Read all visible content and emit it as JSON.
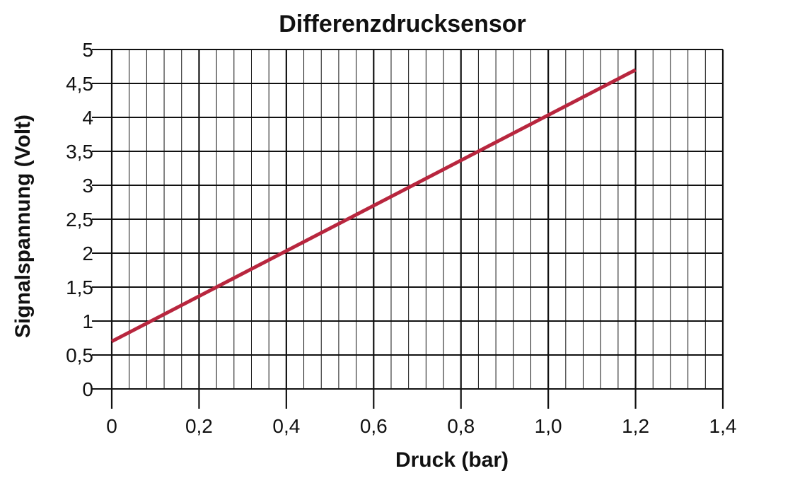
{
  "chart_data": {
    "type": "line",
    "title": "Differenzdrucksensor",
    "xlabel": "Druck (bar)",
    "ylabel": "Signalspannung (Volt)",
    "xlim": [
      0,
      1.4
    ],
    "ylim": [
      0,
      5
    ],
    "x_ticks": [
      "0",
      "0,2",
      "0,4",
      "0,6",
      "0,8",
      "1,0",
      "1,2",
      "1,4"
    ],
    "y_ticks": [
      "0",
      "0,5",
      "1",
      "1,5",
      "2",
      "2,5",
      "3",
      "3,5",
      "4",
      "4,5",
      "5"
    ],
    "grid": true,
    "legend": "none",
    "line_color": "#b8263e",
    "series": [
      {
        "x": [
          0,
          1.2
        ],
        "y": [
          0.7,
          4.7
        ]
      }
    ]
  }
}
